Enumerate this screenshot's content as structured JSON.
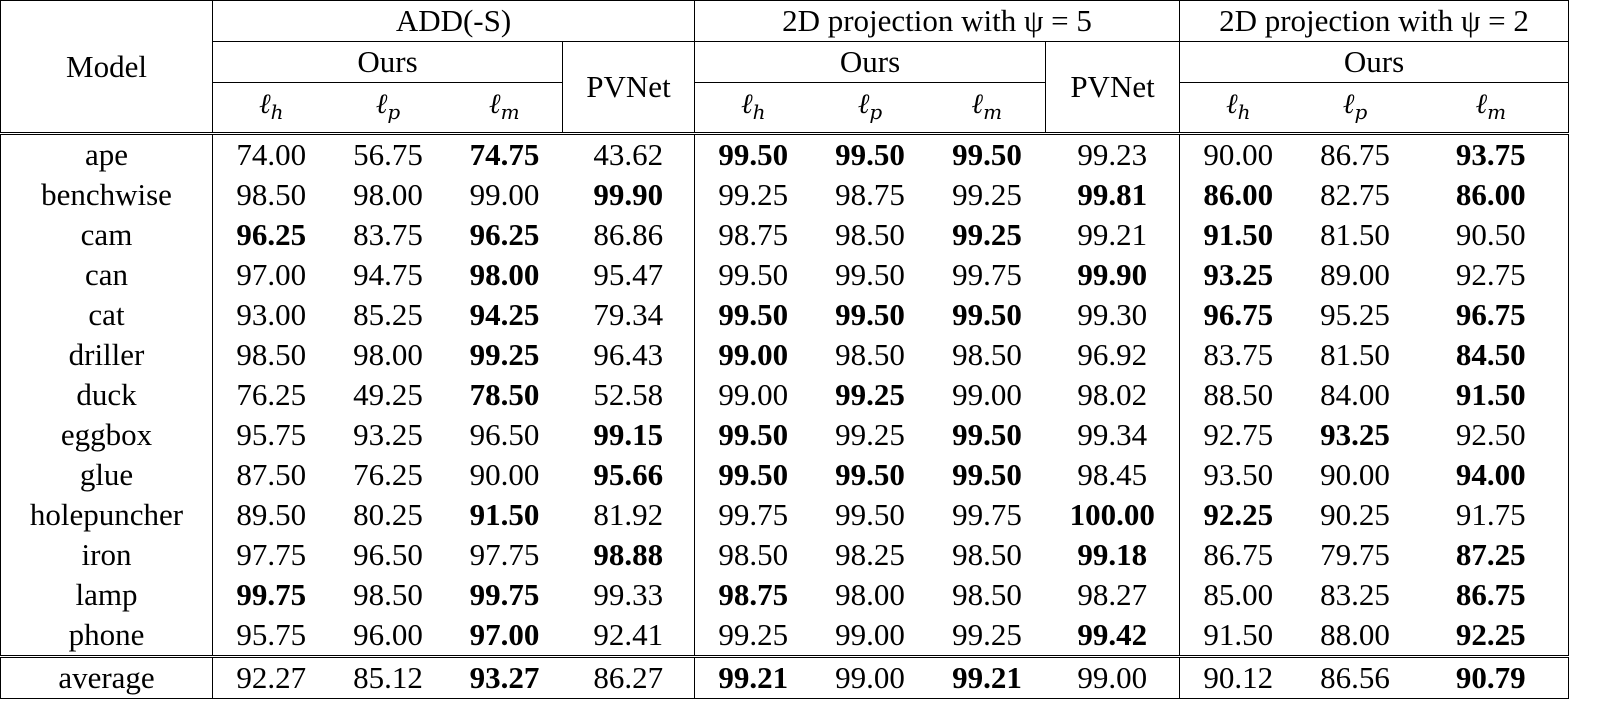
{
  "header": {
    "model_label": "Model",
    "group_add": "ADD(-S)",
    "group_proj5": "2D projection with ψ = 5",
    "group_proj2": "2D projection with ψ = 2",
    "ours_label": "Ours",
    "pvnet_label": "PVNet",
    "loss_h": "ℓ",
    "loss_h_sub": "h",
    "loss_p": "ℓ",
    "loss_p_sub": "p",
    "loss_m": "ℓ",
    "loss_m_sub": "m"
  },
  "rows": [
    {
      "model": "ape",
      "vals": [
        "74.00",
        "56.75",
        "74.75",
        "43.62",
        "99.50",
        "99.50",
        "99.50",
        "99.23",
        "90.00",
        "86.75",
        "93.75"
      ],
      "bold": [
        2,
        4,
        5,
        6,
        10
      ]
    },
    {
      "model": "benchwise",
      "vals": [
        "98.50",
        "98.00",
        "99.00",
        "99.90",
        "99.25",
        "98.75",
        "99.25",
        "99.81",
        "86.00",
        "82.75",
        "86.00"
      ],
      "bold": [
        3,
        7,
        8,
        10
      ]
    },
    {
      "model": "cam",
      "vals": [
        "96.25",
        "83.75",
        "96.25",
        "86.86",
        "98.75",
        "98.50",
        "99.25",
        "99.21",
        "91.50",
        "81.50",
        "90.50"
      ],
      "bold": [
        0,
        2,
        6,
        8
      ]
    },
    {
      "model": "can",
      "vals": [
        "97.00",
        "94.75",
        "98.00",
        "95.47",
        "99.50",
        "99.50",
        "99.75",
        "99.90",
        "93.25",
        "89.00",
        "92.75"
      ],
      "bold": [
        2,
        7,
        8
      ]
    },
    {
      "model": "cat",
      "vals": [
        "93.00",
        "85.25",
        "94.25",
        "79.34",
        "99.50",
        "99.50",
        "99.50",
        "99.30",
        "96.75",
        "95.25",
        "96.75"
      ],
      "bold": [
        2,
        4,
        5,
        6,
        8,
        10
      ]
    },
    {
      "model": "driller",
      "vals": [
        "98.50",
        "98.00",
        "99.25",
        "96.43",
        "99.00",
        "98.50",
        "98.50",
        "96.92",
        "83.75",
        "81.50",
        "84.50"
      ],
      "bold": [
        2,
        4,
        10
      ]
    },
    {
      "model": "duck",
      "vals": [
        "76.25",
        "49.25",
        "78.50",
        "52.58",
        "99.00",
        "99.25",
        "99.00",
        "98.02",
        "88.50",
        "84.00",
        "91.50"
      ],
      "bold": [
        2,
        5,
        10
      ]
    },
    {
      "model": "eggbox",
      "vals": [
        "95.75",
        "93.25",
        "96.50",
        "99.15",
        "99.50",
        "99.25",
        "99.50",
        "99.34",
        "92.75",
        "93.25",
        "92.50"
      ],
      "bold": [
        3,
        4,
        6,
        9
      ]
    },
    {
      "model": "glue",
      "vals": [
        "87.50",
        "76.25",
        "90.00",
        "95.66",
        "99.50",
        "99.50",
        "99.50",
        "98.45",
        "93.50",
        "90.00",
        "94.00"
      ],
      "bold": [
        3,
        4,
        5,
        6,
        10
      ]
    },
    {
      "model": "holepuncher",
      "vals": [
        "89.50",
        "80.25",
        "91.50",
        "81.92",
        "99.75",
        "99.50",
        "99.75",
        "100.00",
        "92.25",
        "90.25",
        "91.75"
      ],
      "bold": [
        2,
        7,
        8
      ]
    },
    {
      "model": "iron",
      "vals": [
        "97.75",
        "96.50",
        "97.75",
        "98.88",
        "98.50",
        "98.25",
        "98.50",
        "99.18",
        "86.75",
        "79.75",
        "87.25"
      ],
      "bold": [
        3,
        7,
        10
      ]
    },
    {
      "model": "lamp",
      "vals": [
        "99.75",
        "98.50",
        "99.75",
        "99.33",
        "98.75",
        "98.00",
        "98.50",
        "98.27",
        "85.00",
        "83.25",
        "86.75"
      ],
      "bold": [
        0,
        2,
        4,
        10
      ]
    },
    {
      "model": "phone",
      "vals": [
        "95.75",
        "96.00",
        "97.00",
        "92.41",
        "99.25",
        "99.00",
        "99.25",
        "99.42",
        "91.50",
        "88.00",
        "92.25"
      ],
      "bold": [
        2,
        7,
        10
      ]
    }
  ],
  "average": {
    "model": "average",
    "vals": [
      "92.27",
      "85.12",
      "93.27",
      "86.27",
      "99.21",
      "99.00",
      "99.21",
      "99.00",
      "90.12",
      "86.56",
      "90.79"
    ],
    "bold": [
      2,
      4,
      6,
      10
    ]
  }
}
